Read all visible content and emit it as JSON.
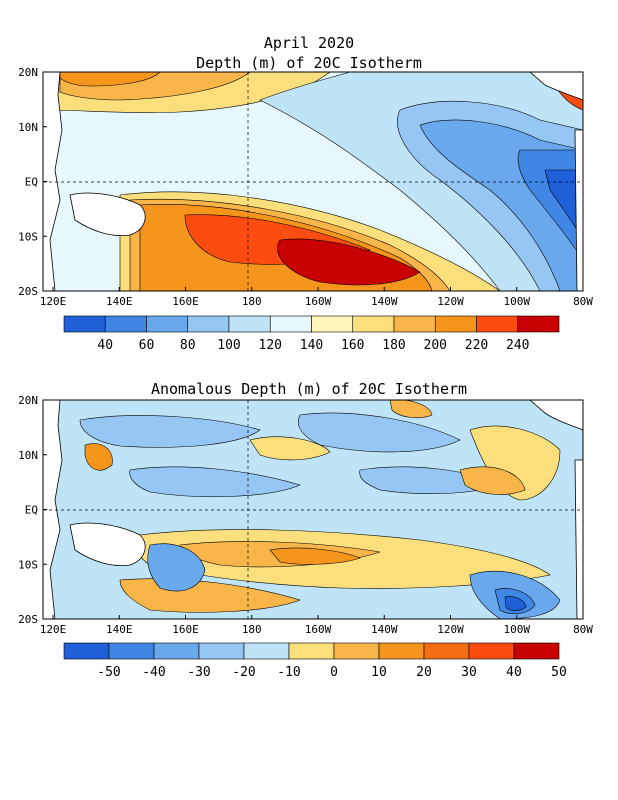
{
  "title": {
    "line1": "April 2020",
    "line2": "Depth (m) of 20C Isotherm"
  },
  "anomaly_title": "Anomalous Depth (m) of 20C Isotherm",
  "lat_labels": [
    "20N",
    "10N",
    "EQ",
    "10S",
    "20S"
  ],
  "lon_labels": [
    "120E",
    "140E",
    "160E",
    "180",
    "160W",
    "140W",
    "120W",
    "100W",
    "80W"
  ],
  "depth_colorbar": {
    "colors": [
      "#1f5fd8",
      "#3f86e5",
      "#6aa8ee",
      "#96c6f4",
      "#bfe4f7",
      "#e6f8fb",
      "#fff6b8",
      "#fbdf7c",
      "#f8b54a",
      "#f5951c",
      "#fc4c10",
      "#c80000"
    ],
    "labels": [
      "40",
      "60",
      "80",
      "100",
      "120",
      "140",
      "160",
      "180",
      "200",
      "220",
      "240"
    ]
  },
  "anomaly_colorbar": {
    "colors": [
      "#1f5fd8",
      "#3f86e5",
      "#6aa8ee",
      "#96c6f4",
      "#bfe4f7",
      "#fbdf7c",
      "#f8b54a",
      "#f5951c",
      "#f56d12",
      "#fc4c10",
      "#c80000"
    ],
    "labels": [
      "-50",
      "-40",
      "-30",
      "-20",
      "-10",
      "0",
      "10",
      "20",
      "30",
      "40",
      "50"
    ]
  }
}
